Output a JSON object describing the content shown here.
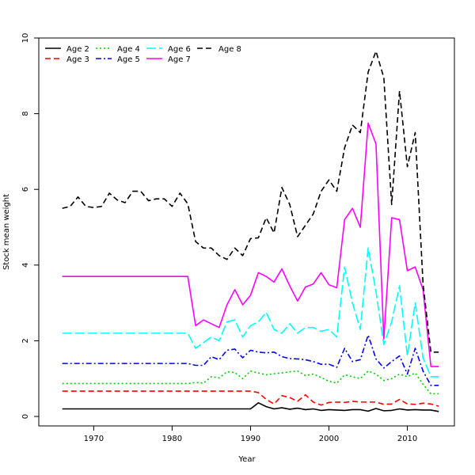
{
  "chart_data": {
    "type": "line",
    "xlabel": "Year",
    "ylabel": "Stock mean weight",
    "xlim": [
      1963,
      2016
    ],
    "ylim": [
      -0.25,
      10.0
    ],
    "x_ticks": [
      1970,
      1980,
      1990,
      2000,
      2010
    ],
    "y_ticks": [
      0,
      2,
      4,
      6,
      8,
      10
    ],
    "grid": false,
    "legend_position": "top-left",
    "x": [
      1966,
      1967,
      1968,
      1969,
      1970,
      1971,
      1972,
      1973,
      1974,
      1975,
      1976,
      1977,
      1978,
      1979,
      1980,
      1981,
      1982,
      1983,
      1984,
      1985,
      1986,
      1987,
      1988,
      1989,
      1990,
      1991,
      1992,
      1993,
      1994,
      1995,
      1996,
      1997,
      1998,
      1999,
      2000,
      2001,
      2002,
      2003,
      2004,
      2005,
      2006,
      2007,
      2008,
      2009,
      2010,
      2011,
      2012,
      2013,
      2014
    ],
    "series": [
      {
        "name": "Age 2",
        "color": "#000000",
        "dash": "",
        "values": [
          0.2,
          0.2,
          0.2,
          0.2,
          0.2,
          0.2,
          0.2,
          0.2,
          0.2,
          0.2,
          0.2,
          0.2,
          0.2,
          0.2,
          0.2,
          0.2,
          0.2,
          0.2,
          0.2,
          0.2,
          0.2,
          0.2,
          0.2,
          0.2,
          0.2,
          0.36,
          0.26,
          0.2,
          0.23,
          0.19,
          0.22,
          0.18,
          0.2,
          0.16,
          0.18,
          0.17,
          0.16,
          0.18,
          0.18,
          0.14,
          0.21,
          0.15,
          0.16,
          0.2,
          0.17,
          0.18,
          0.17,
          0.17,
          0.13
        ]
      },
      {
        "name": "Age 3",
        "color": "#ff0000",
        "dash": "7,4",
        "values": [
          0.67,
          0.67,
          0.67,
          0.67,
          0.67,
          0.67,
          0.67,
          0.67,
          0.67,
          0.67,
          0.67,
          0.67,
          0.67,
          0.67,
          0.67,
          0.67,
          0.67,
          0.67,
          0.67,
          0.67,
          0.67,
          0.67,
          0.67,
          0.67,
          0.67,
          0.63,
          0.45,
          0.33,
          0.55,
          0.5,
          0.4,
          0.57,
          0.38,
          0.3,
          0.37,
          0.38,
          0.37,
          0.4,
          0.38,
          0.38,
          0.38,
          0.32,
          0.33,
          0.45,
          0.33,
          0.32,
          0.35,
          0.33,
          0.27
        ]
      },
      {
        "name": "Age 4",
        "color": "#00cd00",
        "dash": "2,3",
        "values": [
          0.87,
          0.87,
          0.87,
          0.87,
          0.87,
          0.87,
          0.87,
          0.87,
          0.87,
          0.87,
          0.87,
          0.87,
          0.87,
          0.87,
          0.87,
          0.87,
          0.87,
          0.9,
          0.88,
          1.05,
          1.02,
          1.18,
          1.16,
          1.0,
          1.2,
          1.15,
          1.1,
          1.13,
          1.15,
          1.18,
          1.2,
          1.08,
          1.12,
          1.03,
          0.93,
          0.88,
          1.1,
          1.05,
          1.0,
          1.2,
          1.12,
          0.95,
          1.0,
          1.12,
          1.05,
          1.15,
          0.85,
          0.6,
          0.6
        ]
      },
      {
        "name": "Age 5",
        "color": "#0000ff",
        "dash": "7,3,2,3",
        "values": [
          1.4,
          1.4,
          1.4,
          1.4,
          1.4,
          1.4,
          1.4,
          1.4,
          1.4,
          1.4,
          1.4,
          1.4,
          1.4,
          1.4,
          1.4,
          1.4,
          1.4,
          1.35,
          1.35,
          1.58,
          1.5,
          1.75,
          1.78,
          1.55,
          1.75,
          1.7,
          1.68,
          1.7,
          1.58,
          1.53,
          1.52,
          1.5,
          1.45,
          1.38,
          1.38,
          1.3,
          1.8,
          1.45,
          1.5,
          2.15,
          1.52,
          1.28,
          1.45,
          1.6,
          1.12,
          1.8,
          1.2,
          0.82,
          0.82
        ]
      },
      {
        "name": "Age 6",
        "color": "#00ffff",
        "dash": "12,4",
        "values": [
          2.2,
          2.2,
          2.2,
          2.2,
          2.2,
          2.2,
          2.2,
          2.2,
          2.2,
          2.2,
          2.2,
          2.2,
          2.2,
          2.2,
          2.2,
          2.2,
          2.2,
          1.8,
          1.95,
          2.1,
          2.0,
          2.5,
          2.55,
          2.1,
          2.4,
          2.5,
          2.75,
          2.3,
          2.2,
          2.45,
          2.2,
          2.35,
          2.35,
          2.25,
          2.3,
          2.1,
          3.95,
          3.0,
          2.3,
          4.45,
          3.3,
          1.9,
          2.5,
          3.45,
          1.6,
          3.0,
          1.55,
          1.05,
          1.05
        ]
      },
      {
        "name": "Age 7",
        "color": "#ff00ff",
        "dash": "",
        "values": [
          3.7,
          3.7,
          3.7,
          3.7,
          3.7,
          3.7,
          3.7,
          3.7,
          3.7,
          3.7,
          3.7,
          3.7,
          3.7,
          3.7,
          3.7,
          3.7,
          3.7,
          2.4,
          2.55,
          2.45,
          2.35,
          2.95,
          3.35,
          2.95,
          3.2,
          3.8,
          3.7,
          3.55,
          3.9,
          3.45,
          3.05,
          3.42,
          3.5,
          3.8,
          3.48,
          3.4,
          5.2,
          5.5,
          5.0,
          7.75,
          7.2,
          2.05,
          5.25,
          5.2,
          3.85,
          3.95,
          3.35,
          1.32,
          1.32
        ]
      },
      {
        "name": "Age 8",
        "color": "#000000",
        "dash": "7,4",
        "values": [
          5.5,
          5.55,
          5.8,
          5.55,
          5.52,
          5.55,
          5.9,
          5.72,
          5.65,
          5.95,
          5.95,
          5.7,
          5.75,
          5.75,
          5.55,
          5.9,
          5.62,
          4.62,
          4.45,
          4.45,
          4.25,
          4.15,
          4.45,
          4.25,
          4.7,
          4.72,
          5.25,
          4.85,
          6.05,
          5.6,
          4.75,
          5.05,
          5.35,
          5.95,
          6.25,
          5.95,
          7.1,
          7.7,
          7.5,
          9.1,
          9.65,
          8.95,
          5.6,
          8.6,
          6.6,
          7.5,
          3.5,
          1.7,
          1.7
        ]
      }
    ]
  }
}
